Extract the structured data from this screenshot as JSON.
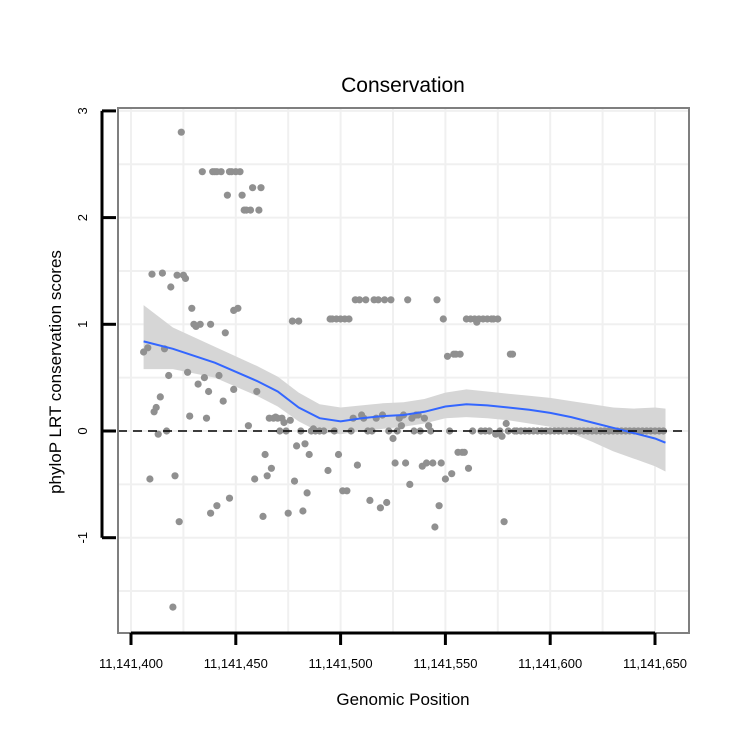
{
  "chart_data": {
    "type": "scatter",
    "title": "Conservation",
    "xlabel": "Genomic Position",
    "ylabel": "phyloP LRT conservation scores",
    "xlim": [
      11141400,
      11141650
    ],
    "ylim": [
      -1.85,
      3.0
    ],
    "x_ticks": [
      11141400,
      11141450,
      11141500,
      11141550,
      11141600,
      11141650
    ],
    "x_tick_labels": [
      "11,141,400",
      "11,141,450",
      "11,141,500",
      "11,141,550",
      "11,141,600",
      "11,141,650"
    ],
    "y_ticks": [
      -1,
      0,
      1,
      2,
      3
    ],
    "y_tick_labels": [
      "-1",
      "0",
      "1",
      "2",
      "3"
    ],
    "reference_line": {
      "y": 0,
      "style": "dashed"
    },
    "grid": true,
    "colors": {
      "points": "#909090",
      "smooth": "#3366ff",
      "ribbon": "#d4d4d4",
      "panel_border": "#7f7f7f",
      "grid": "#f0f0f0"
    },
    "points": [
      [
        11141406,
        0.74
      ],
      [
        11141408,
        0.78
      ],
      [
        11141409,
        -0.45
      ],
      [
        11141410,
        1.47
      ],
      [
        11141411,
        0.18
      ],
      [
        11141412,
        0.22
      ],
      [
        11141413,
        -0.03
      ],
      [
        11141414,
        0.32
      ],
      [
        11141415,
        1.48
      ],
      [
        11141416,
        0.77
      ],
      [
        11141417,
        0.0
      ],
      [
        11141418,
        0.52
      ],
      [
        11141419,
        1.35
      ],
      [
        11141420,
        -1.65
      ],
      [
        11141421,
        -0.42
      ],
      [
        11141422,
        1.46
      ],
      [
        11141423,
        -0.85
      ],
      [
        11141424,
        2.8
      ],
      [
        11141425,
        1.46
      ],
      [
        11141426,
        1.43
      ],
      [
        11141427,
        0.55
      ],
      [
        11141428,
        0.14
      ],
      [
        11141429,
        1.15
      ],
      [
        11141430,
        1.0
      ],
      [
        11141431,
        0.98
      ],
      [
        11141432,
        0.44
      ],
      [
        11141433,
        1.0
      ],
      [
        11141434,
        2.43
      ],
      [
        11141435,
        0.5
      ],
      [
        11141436,
        0.12
      ],
      [
        11141437,
        0.37
      ],
      [
        11141438,
        1.0
      ],
      [
        11141438,
        -0.77
      ],
      [
        11141439,
        2.43
      ],
      [
        11141440,
        2.43
      ],
      [
        11141441,
        -0.7
      ],
      [
        11141441,
        2.43
      ],
      [
        11141442,
        0.52
      ],
      [
        11141443,
        2.43
      ],
      [
        11141444,
        0.28
      ],
      [
        11141445,
        0.92
      ],
      [
        11141446,
        2.21
      ],
      [
        11141447,
        2.43
      ],
      [
        11141447,
        -0.63
      ],
      [
        11141448,
        2.43
      ],
      [
        11141449,
        0.39
      ],
      [
        11141449,
        1.13
      ],
      [
        11141450,
        2.43
      ],
      [
        11141451,
        1.15
      ],
      [
        11141452,
        2.43
      ],
      [
        11141453,
        2.21
      ],
      [
        11141454,
        2.07
      ],
      [
        11141455,
        2.07
      ],
      [
        11141456,
        0.05
      ],
      [
        11141457,
        2.07
      ],
      [
        11141458,
        2.28
      ],
      [
        11141459,
        -0.45
      ],
      [
        11141460,
        0.37
      ],
      [
        11141461,
        2.07
      ],
      [
        11141462,
        2.28
      ],
      [
        11141463,
        -0.8
      ],
      [
        11141464,
        -0.22
      ],
      [
        11141465,
        -0.42
      ],
      [
        11141466,
        0.12
      ],
      [
        11141467,
        -0.35
      ],
      [
        11141468,
        0.12
      ],
      [
        11141469,
        0.13
      ],
      [
        11141470,
        0.12
      ],
      [
        11141471,
        0.0
      ],
      [
        11141472,
        0.12
      ],
      [
        11141473,
        0.08
      ],
      [
        11141474,
        0.0
      ],
      [
        11141475,
        -0.77
      ],
      [
        11141476,
        0.1
      ],
      [
        11141477,
        1.03
      ],
      [
        11141478,
        -0.47
      ],
      [
        11141479,
        -0.14
      ],
      [
        11141480,
        1.03
      ],
      [
        11141481,
        0.0
      ],
      [
        11141482,
        -0.75
      ],
      [
        11141483,
        -0.12
      ],
      [
        11141484,
        -0.58
      ],
      [
        11141485,
        -0.22
      ],
      [
        11141486,
        0.0
      ],
      [
        11141487,
        0.02
      ],
      [
        11141488,
        0.0
      ],
      [
        11141490,
        0.0
      ],
      [
        11141492,
        0.0
      ],
      [
        11141494,
        -0.37
      ],
      [
        11141495,
        1.05
      ],
      [
        11141496,
        1.05
      ],
      [
        11141497,
        0.0
      ],
      [
        11141498,
        1.05
      ],
      [
        11141499,
        -0.22
      ],
      [
        11141500,
        1.05
      ],
      [
        11141501,
        -0.56
      ],
      [
        11141502,
        1.05
      ],
      [
        11141503,
        -0.56
      ],
      [
        11141504,
        1.05
      ],
      [
        11141505,
        0.0
      ],
      [
        11141506,
        0.12
      ],
      [
        11141507,
        1.23
      ],
      [
        11141508,
        -0.32
      ],
      [
        11141509,
        1.23
      ],
      [
        11141510,
        0.15
      ],
      [
        11141511,
        0.12
      ],
      [
        11141512,
        1.23
      ],
      [
        11141513,
        0.0
      ],
      [
        11141514,
        -0.65
      ],
      [
        11141515,
        0.0
      ],
      [
        11141516,
        1.23
      ],
      [
        11141517,
        0.12
      ],
      [
        11141518,
        1.23
      ],
      [
        11141519,
        -0.72
      ],
      [
        11141520,
        0.15
      ],
      [
        11141521,
        1.23
      ],
      [
        11141522,
        -0.67
      ],
      [
        11141523,
        0.0
      ],
      [
        11141524,
        1.23
      ],
      [
        11141525,
        -0.07
      ],
      [
        11141526,
        -0.3
      ],
      [
        11141527,
        0.0
      ],
      [
        11141528,
        0.12
      ],
      [
        11141529,
        0.05
      ],
      [
        11141530,
        0.15
      ],
      [
        11141531,
        -0.3
      ],
      [
        11141532,
        1.23
      ],
      [
        11141533,
        -0.5
      ],
      [
        11141534,
        0.12
      ],
      [
        11141535,
        0.0
      ],
      [
        11141536,
        0.15
      ],
      [
        11141537,
        0.15
      ],
      [
        11141538,
        0.0
      ],
      [
        11141539,
        -0.33
      ],
      [
        11141540,
        0.12
      ],
      [
        11141541,
        -0.3
      ],
      [
        11141542,
        0.05
      ],
      [
        11141543,
        0.0
      ],
      [
        11141544,
        -0.3
      ],
      [
        11141545,
        -0.9
      ],
      [
        11141546,
        1.23
      ],
      [
        11141547,
        -0.7
      ],
      [
        11141548,
        -0.3
      ],
      [
        11141549,
        1.05
      ],
      [
        11141550,
        -0.45
      ],
      [
        11141551,
        0.7
      ],
      [
        11141552,
        0.0
      ],
      [
        11141553,
        -0.4
      ],
      [
        11141554,
        0.72
      ],
      [
        11141555,
        0.72
      ],
      [
        11141556,
        -0.2
      ],
      [
        11141557,
        0.72
      ],
      [
        11141558,
        -0.2
      ],
      [
        11141559,
        -0.2
      ],
      [
        11141560,
        1.05
      ],
      [
        11141561,
        -0.35
      ],
      [
        11141562,
        1.05
      ],
      [
        11141563,
        0.0
      ],
      [
        11141564,
        1.05
      ],
      [
        11141565,
        1.02
      ],
      [
        11141566,
        1.05
      ],
      [
        11141567,
        0.0
      ],
      [
        11141568,
        1.05
      ],
      [
        11141569,
        0.0
      ],
      [
        11141570,
        1.05
      ],
      [
        11141571,
        0.0
      ],
      [
        11141572,
        1.05
      ],
      [
        11141573,
        1.05
      ],
      [
        11141574,
        -0.03
      ],
      [
        11141575,
        1.05
      ],
      [
        11141576,
        0.0
      ],
      [
        11141577,
        -0.05
      ],
      [
        11141578,
        -0.85
      ],
      [
        11141579,
        0.07
      ],
      [
        11141580,
        0.0
      ],
      [
        11141581,
        0.72
      ],
      [
        11141582,
        0.72
      ],
      [
        11141583,
        0.0
      ],
      [
        11141584,
        0.0
      ],
      [
        11141586,
        0.0
      ],
      [
        11141588,
        0.0
      ],
      [
        11141590,
        0.0
      ],
      [
        11141592,
        0.0
      ],
      [
        11141594,
        0.0
      ],
      [
        11141596,
        0.0
      ],
      [
        11141598,
        0.0
      ],
      [
        11141600,
        0.0
      ],
      [
        11141602,
        0.0
      ],
      [
        11141604,
        0.0
      ],
      [
        11141606,
        0.0
      ],
      [
        11141608,
        0.0
      ],
      [
        11141610,
        0.0
      ],
      [
        11141612,
        0.0
      ],
      [
        11141614,
        0.0
      ],
      [
        11141616,
        0.0
      ],
      [
        11141618,
        0.0
      ],
      [
        11141620,
        0.0
      ],
      [
        11141622,
        0.0
      ],
      [
        11141624,
        0.0
      ],
      [
        11141626,
        0.0
      ],
      [
        11141628,
        0.0
      ],
      [
        11141630,
        0.0
      ],
      [
        11141632,
        0.0
      ],
      [
        11141634,
        0.0
      ],
      [
        11141636,
        0.0
      ],
      [
        11141638,
        0.0
      ],
      [
        11141640,
        0.0
      ],
      [
        11141642,
        0.0
      ],
      [
        11141644,
        0.0
      ],
      [
        11141646,
        0.0
      ],
      [
        11141648,
        0.0
      ],
      [
        11141650,
        0.0
      ],
      [
        11141652,
        0.0
      ],
      [
        11141654,
        0.0
      ]
    ],
    "smooth_fit": [
      {
        "x": 11141406,
        "y": 0.84,
        "lo": 0.58,
        "hi": 1.18
      },
      {
        "x": 11141420,
        "y": 0.77,
        "lo": 0.58,
        "hi": 0.97
      },
      {
        "x": 11141440,
        "y": 0.64,
        "lo": 0.5,
        "hi": 0.79
      },
      {
        "x": 11141460,
        "y": 0.47,
        "lo": 0.33,
        "hi": 0.61
      },
      {
        "x": 11141470,
        "y": 0.37,
        "lo": 0.23,
        "hi": 0.51
      },
      {
        "x": 11141480,
        "y": 0.22,
        "lo": 0.09,
        "hi": 0.36
      },
      {
        "x": 11141490,
        "y": 0.12,
        "lo": -0.01,
        "hi": 0.25
      },
      {
        "x": 11141500,
        "y": 0.09,
        "lo": -0.03,
        "hi": 0.22
      },
      {
        "x": 11141510,
        "y": 0.12,
        "lo": 0.0,
        "hi": 0.24
      },
      {
        "x": 11141520,
        "y": 0.14,
        "lo": 0.02,
        "hi": 0.26
      },
      {
        "x": 11141530,
        "y": 0.15,
        "lo": 0.04,
        "hi": 0.27
      },
      {
        "x": 11141540,
        "y": 0.18,
        "lo": 0.07,
        "hi": 0.3
      },
      {
        "x": 11141550,
        "y": 0.23,
        "lo": 0.12,
        "hi": 0.36
      },
      {
        "x": 11141560,
        "y": 0.25,
        "lo": 0.13,
        "hi": 0.39
      },
      {
        "x": 11141570,
        "y": 0.24,
        "lo": 0.12,
        "hi": 0.37
      },
      {
        "x": 11141580,
        "y": 0.22,
        "lo": 0.1,
        "hi": 0.35
      },
      {
        "x": 11141590,
        "y": 0.2,
        "lo": 0.07,
        "hi": 0.33
      },
      {
        "x": 11141600,
        "y": 0.17,
        "lo": 0.04,
        "hi": 0.31
      },
      {
        "x": 11141610,
        "y": 0.13,
        "lo": -0.02,
        "hi": 0.28
      },
      {
        "x": 11141620,
        "y": 0.08,
        "lo": -0.1,
        "hi": 0.25
      },
      {
        "x": 11141630,
        "y": 0.03,
        "lo": -0.19,
        "hi": 0.22
      },
      {
        "x": 11141640,
        "y": -0.02,
        "lo": -0.26,
        "hi": 0.21
      },
      {
        "x": 11141650,
        "y": -0.07,
        "lo": -0.33,
        "hi": 0.22
      },
      {
        "x": 11141655,
        "y": -0.11,
        "lo": -0.38,
        "hi": 0.21
      }
    ]
  }
}
